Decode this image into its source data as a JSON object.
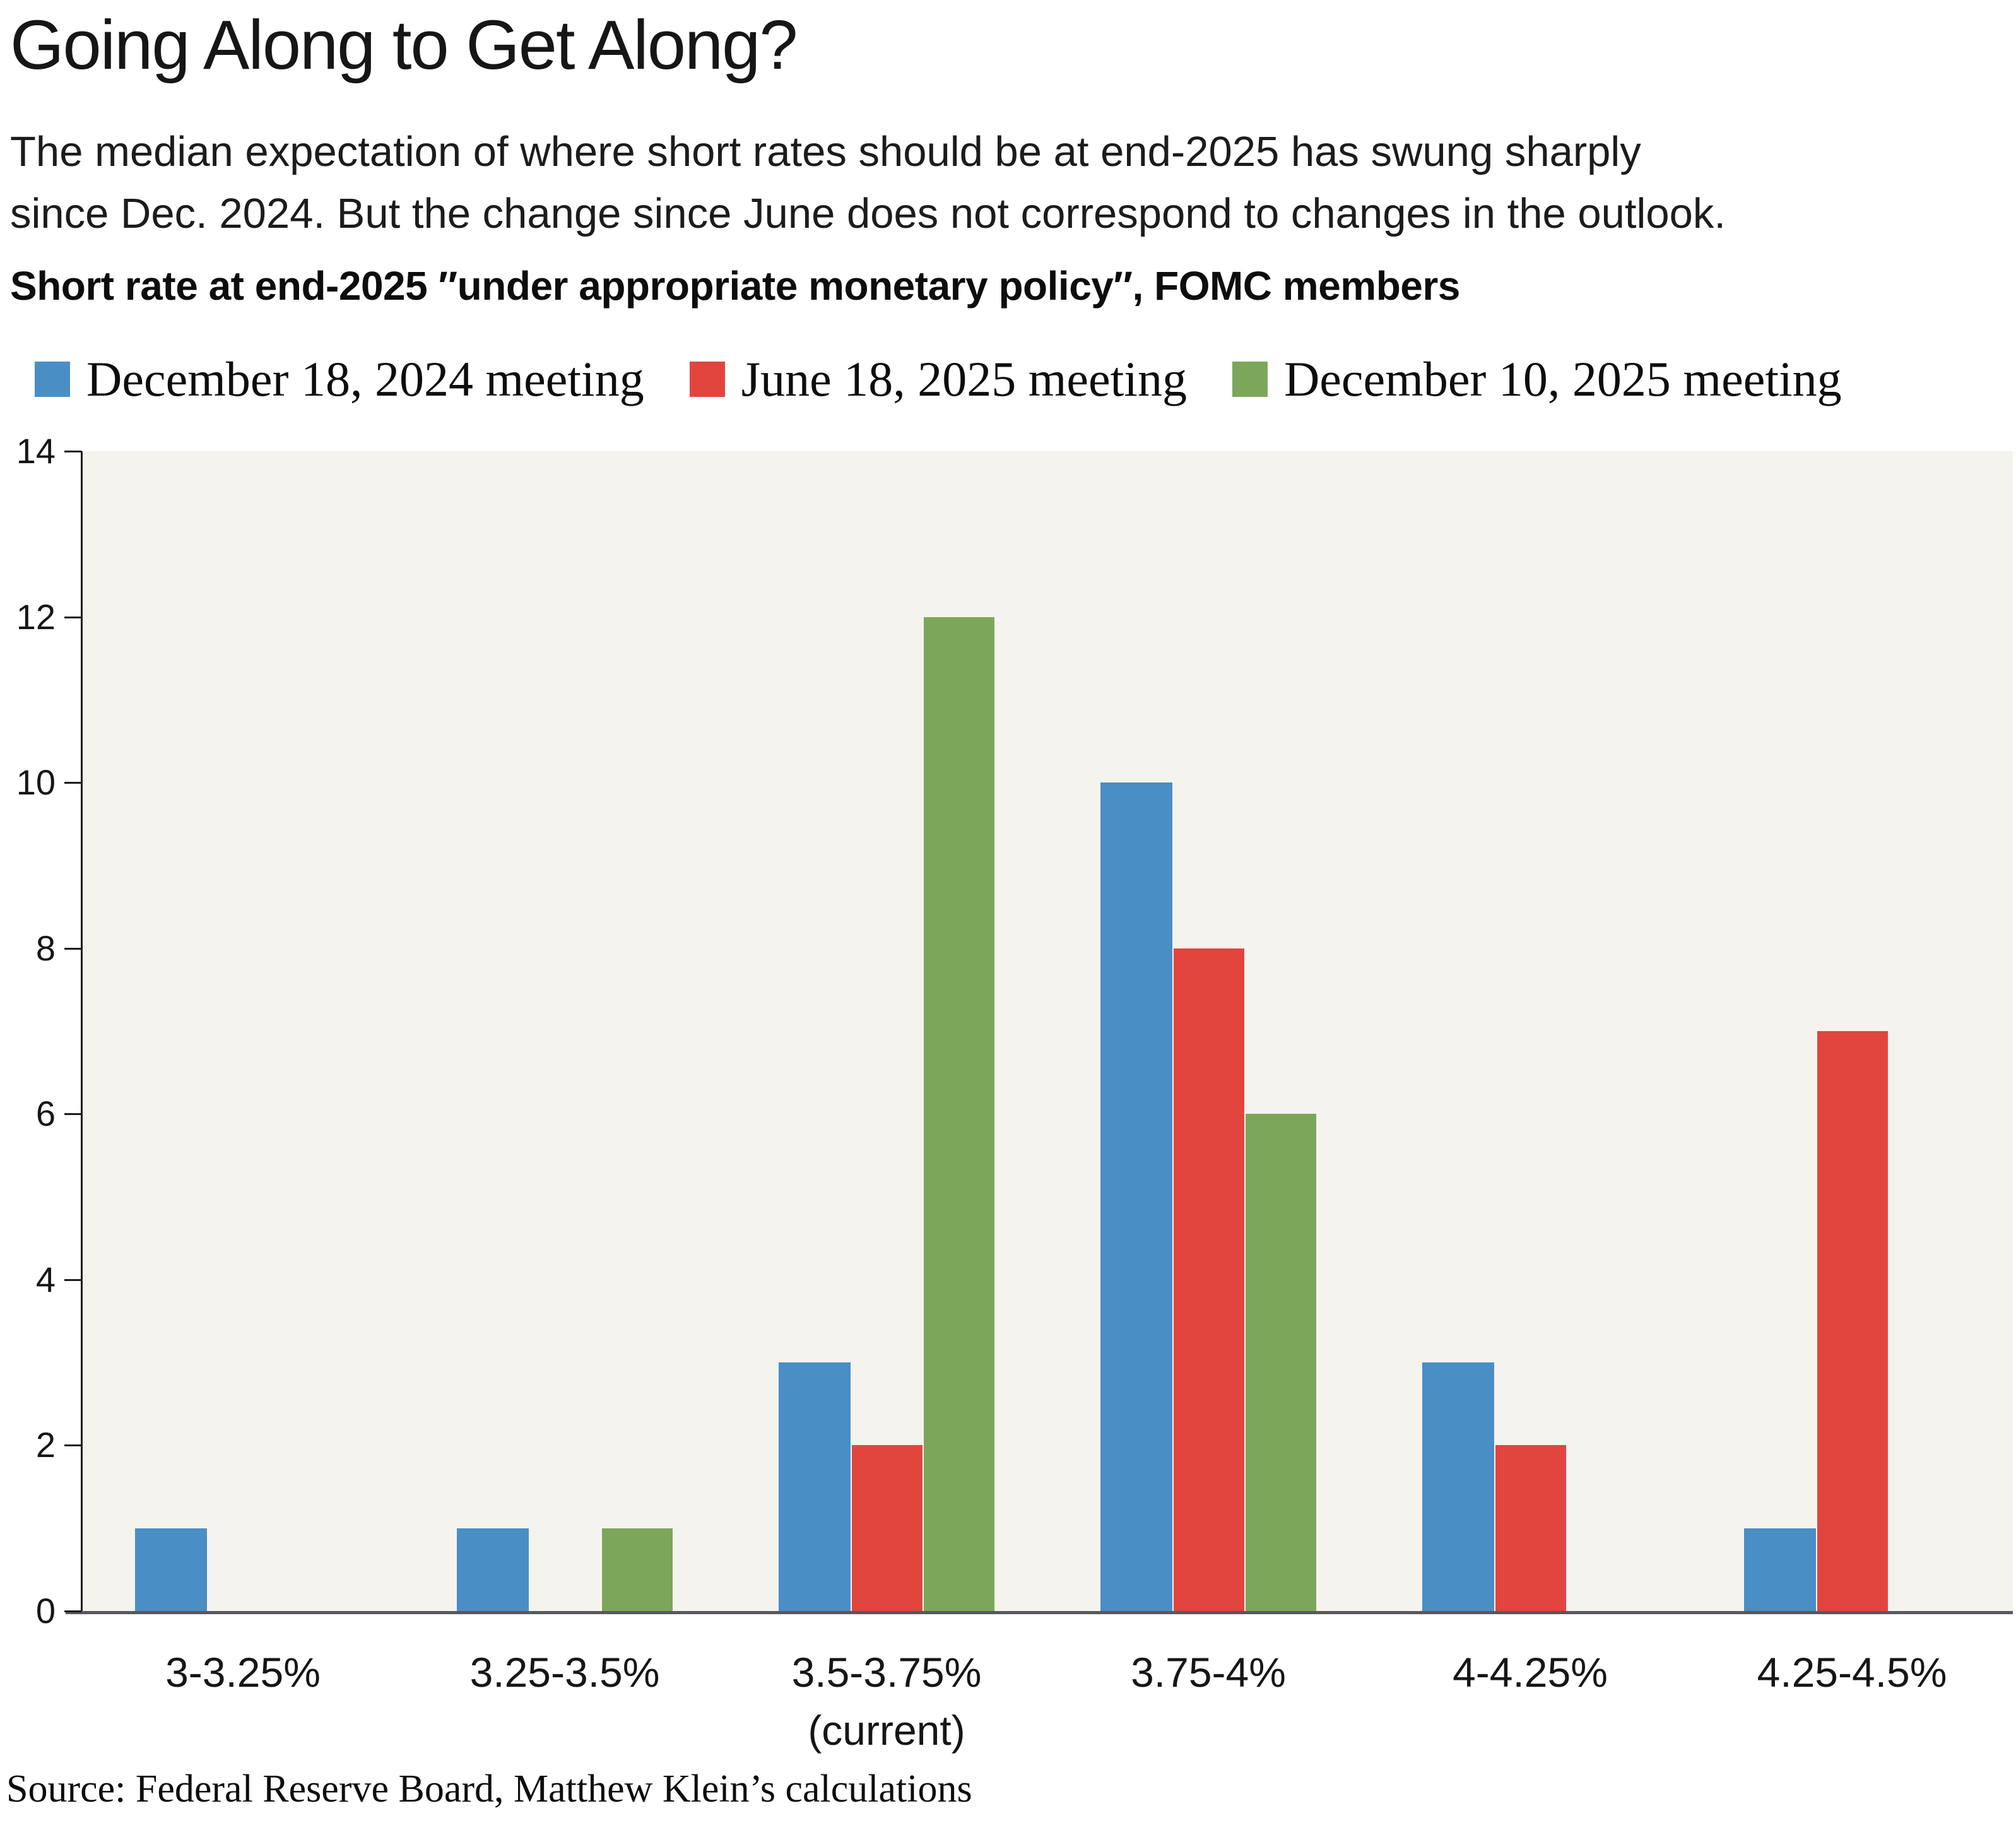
{
  "title": "Going Along to Get Along?",
  "subtitle": {
    "line1": "The median expectation of where short rates should be at end-2025 has swung sharply",
    "line2": "since Dec. 2024. But the change since June does not correspond to changes in the outlook."
  },
  "heading": "Short rate at end-2025 ″under appropriate monetary policy″, FOMC members",
  "source": "Source: Federal Reserve Board, Matthew Klein’s calculations",
  "colors": {
    "blue": "#4a8ec6",
    "red": "#e2453e",
    "green": "#7ca65a",
    "plot_background": "#f5f3ee",
    "y_axis": "#1c1c1c",
    "x_axis": "#56585b",
    "text": "#161616"
  },
  "chart_data": {
    "type": "bar",
    "title": "Short rate at end-2025 ″under appropriate monetary policy″, FOMC members",
    "categories": [
      "3-3.25%",
      "3.25-3.5%",
      "3.5-3.75%",
      "3.75-4%",
      "4-4.25%",
      "4.25-4.5%"
    ],
    "category_sublabels": [
      "",
      "",
      "(current)",
      "",
      "",
      ""
    ],
    "series": [
      {
        "name": "December 18, 2024 meeting",
        "color": "#4a8ec6",
        "values": [
          1,
          1,
          3,
          10,
          3,
          1
        ]
      },
      {
        "name": "June 18, 2025 meeting",
        "color": "#e2453e",
        "values": [
          0,
          0,
          2,
          8,
          2,
          7
        ]
      },
      {
        "name": "December 10, 2025 meeting",
        "color": "#7ca65a",
        "values": [
          0,
          1,
          12,
          6,
          0,
          0
        ]
      }
    ],
    "xlabel": "",
    "ylabel": "",
    "ylim": [
      0,
      14
    ],
    "yticks": [
      0,
      2,
      4,
      6,
      8,
      10,
      12,
      14
    ],
    "grid": false,
    "legend_position": "top"
  }
}
